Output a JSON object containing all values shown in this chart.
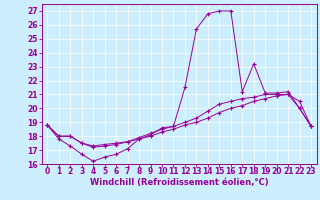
{
  "xlabel": "Windchill (Refroidissement éolien,°C)",
  "background_color": "#cceeff",
  "line_color": "#990099",
  "xlim": [
    -0.5,
    23.5
  ],
  "ylim": [
    16,
    27.5
  ],
  "yticks": [
    16,
    17,
    18,
    19,
    20,
    21,
    22,
    23,
    24,
    25,
    26,
    27
  ],
  "xticks": [
    0,
    1,
    2,
    3,
    4,
    5,
    6,
    7,
    8,
    9,
    10,
    11,
    12,
    13,
    14,
    15,
    16,
    17,
    18,
    19,
    20,
    21,
    22,
    23
  ],
  "series1_x": [
    0,
    1,
    2,
    3,
    4,
    5,
    6,
    7,
    8,
    9,
    10,
    11,
    12,
    13,
    14,
    15,
    16,
    17,
    18,
    19,
    20,
    21,
    22,
    23
  ],
  "series1_y": [
    18.8,
    17.8,
    17.3,
    16.7,
    16.2,
    16.5,
    16.7,
    17.1,
    17.8,
    18.1,
    18.6,
    18.7,
    21.5,
    25.7,
    26.8,
    27.0,
    27.0,
    21.2,
    23.2,
    21.1,
    21.1,
    21.2,
    20.0,
    18.7
  ],
  "series2_x": [
    0,
    1,
    2,
    3,
    4,
    5,
    6,
    7,
    8,
    9,
    10,
    11,
    12,
    13,
    14,
    15,
    16,
    17,
    18,
    19,
    20,
    21,
    22,
    23
  ],
  "series2_y": [
    18.8,
    18.0,
    18.0,
    17.5,
    17.2,
    17.3,
    17.4,
    17.6,
    17.9,
    18.2,
    18.5,
    18.7,
    19.0,
    19.3,
    19.8,
    20.3,
    20.5,
    20.7,
    20.8,
    21.0,
    21.0,
    21.0,
    20.0,
    18.7
  ],
  "series3_x": [
    0,
    1,
    2,
    3,
    4,
    5,
    6,
    7,
    8,
    9,
    10,
    11,
    12,
    13,
    14,
    15,
    16,
    17,
    18,
    19,
    20,
    21,
    22,
    23
  ],
  "series3_y": [
    18.8,
    18.0,
    18.0,
    17.5,
    17.3,
    17.4,
    17.5,
    17.6,
    17.8,
    18.0,
    18.3,
    18.5,
    18.8,
    19.0,
    19.3,
    19.7,
    20.0,
    20.2,
    20.5,
    20.7,
    20.9,
    21.0,
    20.5,
    18.7
  ],
  "tick_fontsize": 5.5,
  "xlabel_fontsize": 6.0
}
